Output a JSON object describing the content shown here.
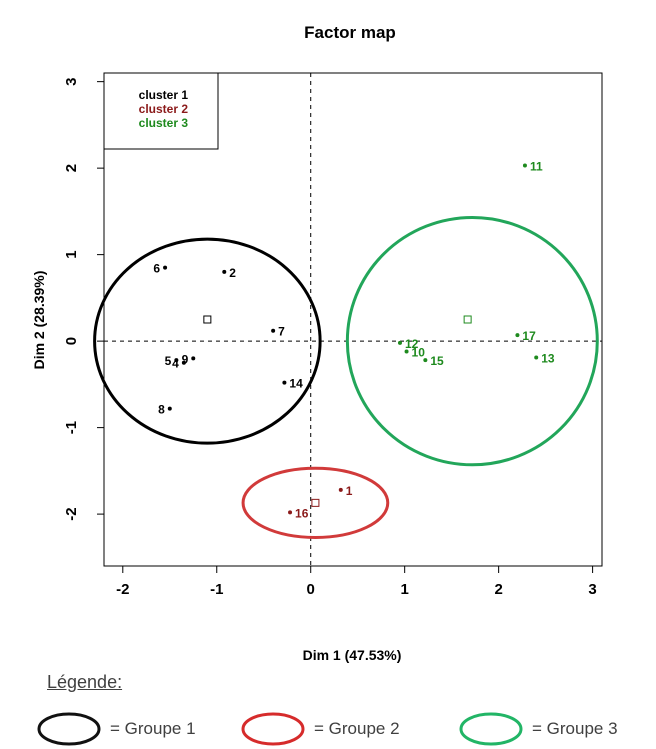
{
  "chart_data": {
    "type": "scatter",
    "title": "Factor map",
    "xlabel": "Dim 1 (47.53%)",
    "ylabel": "Dim 2 (28.39%)",
    "xlim": [
      -2.2,
      3.1
    ],
    "ylim": [
      -2.6,
      3.1
    ],
    "xticks": [
      -2,
      -1,
      0,
      1,
      2,
      3
    ],
    "yticks": [
      -2,
      -1,
      0,
      1,
      2,
      3
    ],
    "legend_position": "top-left",
    "series": [
      {
        "name": "cluster 1",
        "color": "#000000",
        "points": [
          {
            "label": "2",
            "x": -0.92,
            "y": 0.8
          },
          {
            "label": "6",
            "x": -1.55,
            "y": 0.85
          },
          {
            "label": "7",
            "x": -0.4,
            "y": 0.12
          },
          {
            "label": "5",
            "x": -1.43,
            "y": -0.22
          },
          {
            "label": "4",
            "x": -1.35,
            "y": -0.25
          },
          {
            "label": "9",
            "x": -1.25,
            "y": -0.2
          },
          {
            "label": "14",
            "x": -0.28,
            "y": -0.48
          },
          {
            "label": "8",
            "x": -1.5,
            "y": -0.78
          }
        ],
        "center": {
          "x": -1.1,
          "y": 0.25
        },
        "ellipse": {
          "cx": -1.1,
          "cy": 0.0,
          "rx": 1.2,
          "ry": 1.18
        }
      },
      {
        "name": "cluster 2",
        "color": "#8B1A1A",
        "points": [
          {
            "label": "1",
            "x": 0.32,
            "y": -1.72
          },
          {
            "label": "16",
            "x": -0.22,
            "y": -1.98
          }
        ],
        "center": {
          "x": 0.05,
          "y": -1.87
        },
        "ellipse": {
          "cx": 0.05,
          "cy": -1.87,
          "rx": 0.77,
          "ry": 0.4
        }
      },
      {
        "name": "cluster 3",
        "color": "#1E8A1E",
        "points": [
          {
            "label": "11",
            "x": 2.28,
            "y": 2.03
          },
          {
            "label": "17",
            "x": 2.2,
            "y": 0.07
          },
          {
            "label": "12",
            "x": 0.95,
            "y": -0.02
          },
          {
            "label": "10",
            "x": 1.02,
            "y": -0.12
          },
          {
            "label": "15",
            "x": 1.22,
            "y": -0.22
          },
          {
            "label": "13",
            "x": 2.4,
            "y": -0.19
          }
        ],
        "center": {
          "x": 1.67,
          "y": 0.25
        },
        "ellipse": {
          "cx": 1.72,
          "cy": 0.0,
          "rx": 1.33,
          "ry": 1.43
        }
      }
    ]
  },
  "legend": {
    "title": "Légende:",
    "items": [
      {
        "label": "= Groupe 1",
        "color": "#111111"
      },
      {
        "label": "= Groupe 2",
        "color": "#D62B2B"
      },
      {
        "label": "= Groupe 3",
        "color": "#22B566"
      }
    ]
  },
  "colors": {
    "group1_ellipse": "#000000",
    "group2_ellipse": "#D13A3A",
    "group3_ellipse": "#22A65A"
  }
}
